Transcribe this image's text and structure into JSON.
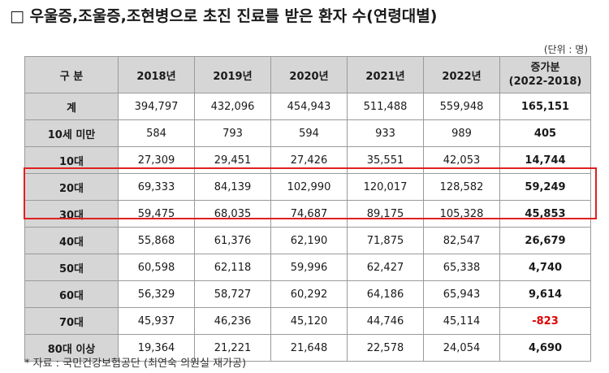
{
  "title": "□ 우울증,조울증,조현병으로 초진 진료를 받은 환자 수(연령대별)",
  "unit": "(단위 : 명)",
  "table": {
    "headers": [
      "구 분",
      "2018년",
      "2019년",
      "2020년",
      "2021년",
      "2022년"
    ],
    "increase_header_line1": "증가분",
    "increase_header_line2": "(2022-2018)",
    "rows": [
      {
        "label": "계",
        "values": [
          "394,797",
          "432,096",
          "454,943",
          "511,488",
          "559,948"
        ],
        "increase": "165,151"
      },
      {
        "label": "10세 미만",
        "values": [
          "584",
          "793",
          "594",
          "933",
          "989"
        ],
        "increase": "405"
      },
      {
        "label": "10대",
        "values": [
          "27,309",
          "29,451",
          "27,426",
          "35,551",
          "42,053"
        ],
        "increase": "14,744"
      },
      {
        "label": "20대",
        "values": [
          "69,333",
          "84,139",
          "102,990",
          "120,017",
          "128,582"
        ],
        "increase": "59,249"
      },
      {
        "label": "30대",
        "values": [
          "59,475",
          "68,035",
          "74,687",
          "89,175",
          "105,328"
        ],
        "increase": "45,853"
      },
      {
        "label": "40대",
        "values": [
          "55,868",
          "61,376",
          "62,190",
          "71,875",
          "82,547"
        ],
        "increase": "26,679"
      },
      {
        "label": "50대",
        "values": [
          "60,598",
          "62,118",
          "59,996",
          "62,427",
          "65,338"
        ],
        "increase": "4,740"
      },
      {
        "label": "60대",
        "values": [
          "56,329",
          "58,727",
          "60,292",
          "64,186",
          "65,943"
        ],
        "increase": "9,614"
      },
      {
        "label": "70대",
        "values": [
          "45,937",
          "46,236",
          "45,120",
          "44,746",
          "45,114"
        ],
        "increase": "-823"
      },
      {
        "label": "80대 이상",
        "values": [
          "19,364",
          "21,221",
          "21,648",
          "22,578",
          "24,054"
        ],
        "increase": "4,690"
      }
    ]
  },
  "footnote": "* 자료 : 국민건강보험공단 (최연숙 의원실 재가공)",
  "colors": {
    "header_bg": "#d6d6d6",
    "highlight_border": "#e02020",
    "negative_text": "#e00000"
  }
}
